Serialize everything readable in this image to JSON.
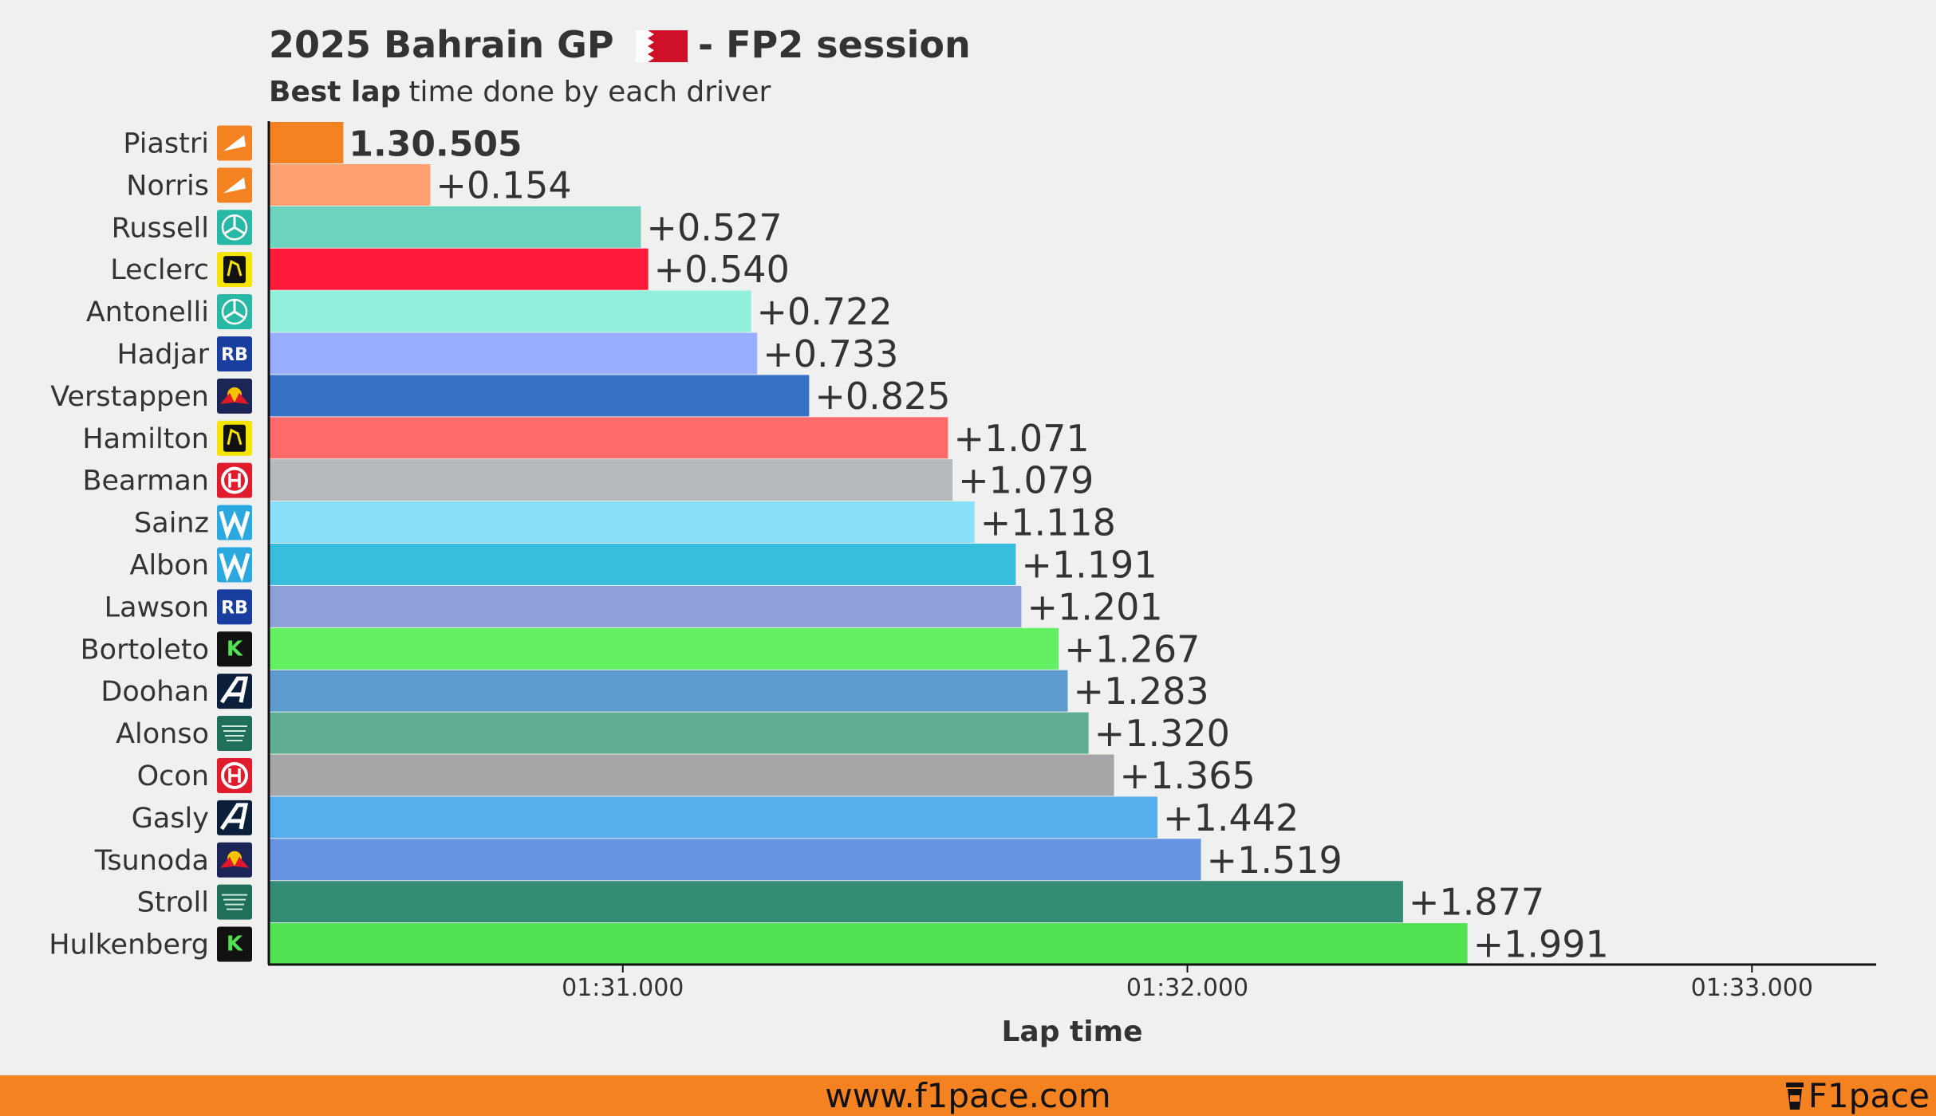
{
  "header": {
    "title_left": "2025 Bahrain GP",
    "title_right": "- FP2 session",
    "flag_icon": "bahrain-flag-icon",
    "subtitle_bold": "Best lap",
    "subtitle_rest": "time done by each driver"
  },
  "chart_data": {
    "type": "bar",
    "orientation": "horizontal",
    "title": "2025 Bahrain GP - FP2 session",
    "subtitle": "Best lap time done by each driver",
    "xlabel": "Lap time",
    "ylabel": "",
    "xlim": [
      "01:30.373",
      "01:33.220"
    ],
    "xticks": [
      "01:31.000",
      "01:32.000",
      "01:33.000"
    ],
    "grid": false,
    "leader_label": "1.30.505",
    "categories": [
      "Piastri",
      "Norris",
      "Russell",
      "Leclerc",
      "Antonelli",
      "Hadjar",
      "Verstappen",
      "Hamilton",
      "Bearman",
      "Sainz",
      "Albon",
      "Lawson",
      "Bortoleto",
      "Doohan",
      "Alonso",
      "Ocon",
      "Gasly",
      "Tsunoda",
      "Stroll",
      "Hulkenberg"
    ],
    "lap_times": [
      "01:30.505",
      "01:30.659",
      "01:31.032",
      "01:31.045",
      "01:31.227",
      "01:31.238",
      "01:31.330",
      "01:31.576",
      "01:31.584",
      "01:31.623",
      "01:31.696",
      "01:31.706",
      "01:31.772",
      "01:31.788",
      "01:31.825",
      "01:31.870",
      "01:31.947",
      "01:32.024",
      "01:32.382",
      "01:32.496"
    ],
    "gap_labels": [
      "1.30.505",
      "+0.154",
      "+0.527",
      "+0.540",
      "+0.722",
      "+0.733",
      "+0.825",
      "+1.071",
      "+1.079",
      "+1.118",
      "+1.191",
      "+1.201",
      "+1.267",
      "+1.283",
      "+1.320",
      "+1.365",
      "+1.442",
      "+1.519",
      "+1.877",
      "+1.991"
    ],
    "colors": [
      "#f58220",
      "#ffa070",
      "#6cd3bf",
      "#ff1a3a",
      "#90f0dc",
      "#98aefe",
      "#3671c6",
      "#ff6b6b",
      "#b6babd",
      "#88e0fa",
      "#37bedd",
      "#8fa0d8",
      "#63f063",
      "#5e9ccf",
      "#5fae94",
      "#a6a6a9",
      "#57aeec",
      "#6692e2",
      "#358c75",
      "#52e252"
    ],
    "teams": [
      "mclaren",
      "mclaren",
      "mercedes",
      "ferrari",
      "mercedes",
      "racing-bulls",
      "red-bull",
      "ferrari",
      "haas",
      "williams",
      "williams",
      "racing-bulls",
      "sauber",
      "alpine",
      "aston-martin",
      "haas",
      "alpine",
      "red-bull",
      "aston-martin",
      "sauber"
    ]
  },
  "footer": {
    "url": "www.f1pace.com",
    "brand": "F1pace"
  }
}
